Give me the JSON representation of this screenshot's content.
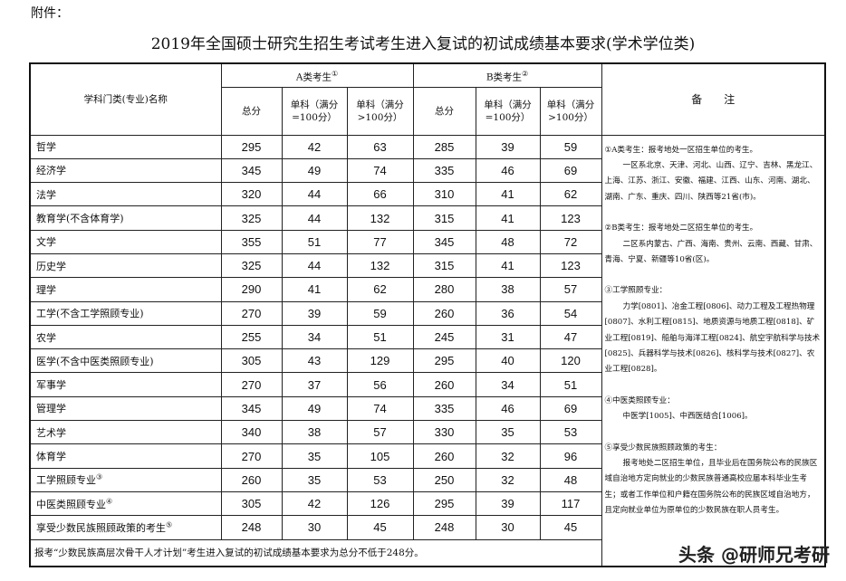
{
  "attachment_label": "附件：",
  "title": "2019年全国硕士研究生招生考试考生进入复试的初试成绩基本要求(学术学位类)",
  "header": {
    "subject": "学科门类(专业)名称",
    "group_a": "A类考生",
    "group_a_mark": "①",
    "group_b": "B类考生",
    "group_b_mark": "②",
    "total": "总分",
    "single_100": "单科（满分=100分）",
    "single_gt100": "单科（满分>100分）",
    "remarks": "备　　注"
  },
  "rows": [
    {
      "name": "哲学",
      "mark": "",
      "a": [
        295,
        42,
        63
      ],
      "b": [
        285,
        39,
        59
      ]
    },
    {
      "name": "经济学",
      "mark": "",
      "a": [
        345,
        49,
        74
      ],
      "b": [
        335,
        46,
        69
      ]
    },
    {
      "name": "法学",
      "mark": "",
      "a": [
        320,
        44,
        66
      ],
      "b": [
        310,
        41,
        62
      ]
    },
    {
      "name": "教育学(不含体育学)",
      "mark": "",
      "a": [
        325,
        44,
        132
      ],
      "b": [
        315,
        41,
        123
      ]
    },
    {
      "name": "文学",
      "mark": "",
      "a": [
        355,
        51,
        77
      ],
      "b": [
        345,
        48,
        72
      ]
    },
    {
      "name": "历史学",
      "mark": "",
      "a": [
        325,
        44,
        132
      ],
      "b": [
        315,
        41,
        123
      ]
    },
    {
      "name": "理学",
      "mark": "",
      "a": [
        290,
        41,
        62
      ],
      "b": [
        280,
        38,
        57
      ]
    },
    {
      "name": "工学(不含工学照顾专业)",
      "mark": "",
      "a": [
        270,
        39,
        59
      ],
      "b": [
        260,
        36,
        54
      ]
    },
    {
      "name": "农学",
      "mark": "",
      "a": [
        255,
        34,
        51
      ],
      "b": [
        245,
        31,
        47
      ]
    },
    {
      "name": "医学(不含中医类照顾专业)",
      "mark": "",
      "a": [
        305,
        43,
        129
      ],
      "b": [
        295,
        40,
        120
      ]
    },
    {
      "name": "军事学",
      "mark": "",
      "a": [
        270,
        37,
        56
      ],
      "b": [
        260,
        34,
        51
      ]
    },
    {
      "name": "管理学",
      "mark": "",
      "a": [
        345,
        49,
        74
      ],
      "b": [
        335,
        46,
        69
      ]
    },
    {
      "name": "艺术学",
      "mark": "",
      "a": [
        340,
        38,
        57
      ],
      "b": [
        330,
        35,
        53
      ]
    },
    {
      "name": "体育学",
      "mark": "",
      "a": [
        270,
        35,
        105
      ],
      "b": [
        260,
        32,
        96
      ]
    },
    {
      "name": "工学照顾专业",
      "mark": "③",
      "a": [
        260,
        35,
        53
      ],
      "b": [
        250,
        32,
        48
      ]
    },
    {
      "name": "中医类照顾专业",
      "mark": "④",
      "a": [
        305,
        42,
        126
      ],
      "b": [
        295,
        39,
        117
      ]
    },
    {
      "name": "享受少数民族照顾政策的考生",
      "mark": "⑤",
      "a": [
        248,
        30,
        45
      ],
      "b": [
        248,
        30,
        45
      ]
    }
  ],
  "footer": "报考“少数民族高层次骨干人才计划”考生进入复试的初试成绩基本要求为总分不低于248分。",
  "notes": [
    {
      "heading": "①A类考生：报考地处一区招生单位的考生。",
      "body": "一区系北京、天津、河北、山西、辽宁、吉林、黑龙江、上海、江苏、浙江、安徽、福建、江西、山东、河南、湖北、湖南、广东、重庆、四川、陕西等21省(市)。"
    },
    {
      "heading": "②B类考生：报考地处二区招生单位的考生。",
      "body": "二区系内蒙古、广西、海南、贵州、云南、西藏、甘肃、青海、宁夏、新疆等10省(区)。"
    },
    {
      "heading": "③工学照顾专业：",
      "body": "力学[0801]、冶金工程[0806]、动力工程及工程热物理[0807]、水利工程[0815]、地质资源与地质工程[0818]、矿业工程[0819]、船舶与海洋工程[0824]、航空宇航科学与技术[0825]、兵器科学与技术[0826]、核科学与技术[0827]、农业工程[0828]。"
    },
    {
      "heading": "④中医类照顾专业：",
      "body": "中医学[1005]、中西医结合[1006]。"
    },
    {
      "heading": "⑤享受少数民族照顾政策的考生：",
      "body": "报考地处二区招生单位，且毕业后在国务院公布的民族区域自治地方定向就业的少数民族普通高校应届本科毕业生考生；或者工作单位和户籍在国务院公布的民族区域自治地方，且定向就业单位为原单位的少数民族在职人员考生。"
    }
  ],
  "watermark": "头条 @研师兄考研"
}
